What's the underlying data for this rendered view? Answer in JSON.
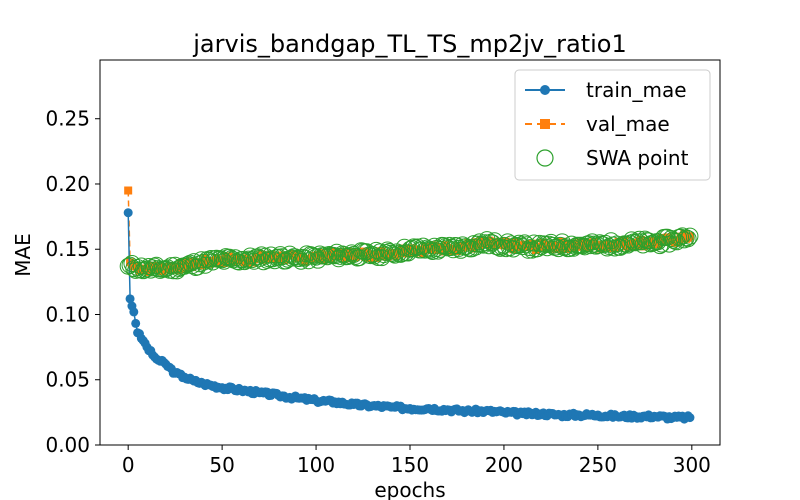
{
  "chart_data": {
    "type": "line",
    "title": "jarvis_bandgap_TL_TS_mp2jv_ratio1",
    "xlabel": "epochs",
    "ylabel": "MAE",
    "xlim": [
      -15,
      315
    ],
    "ylim": [
      0.0,
      0.295
    ],
    "xticks": [
      0,
      50,
      100,
      150,
      200,
      250,
      300
    ],
    "yticks": [
      0.0,
      0.05,
      0.1,
      0.15,
      0.2,
      0.25
    ],
    "legend_position": "top-right",
    "grid": false,
    "series": [
      {
        "name": "train_mae",
        "style": "solid-circle",
        "color": "#1f77b4",
        "anchors": [
          [
            0,
            0.178
          ],
          [
            1,
            0.112
          ],
          [
            3,
            0.102
          ],
          [
            5,
            0.086
          ],
          [
            8,
            0.08
          ],
          [
            10,
            0.075
          ],
          [
            13,
            0.069
          ],
          [
            16,
            0.065
          ],
          [
            20,
            0.062
          ],
          [
            25,
            0.055
          ],
          [
            30,
            0.052
          ],
          [
            35,
            0.049
          ],
          [
            40,
            0.047
          ],
          [
            50,
            0.044
          ],
          [
            60,
            0.042
          ],
          [
            70,
            0.04
          ],
          [
            80,
            0.038
          ],
          [
            90,
            0.036
          ],
          [
            100,
            0.034
          ],
          [
            110,
            0.033
          ],
          [
            120,
            0.031
          ],
          [
            130,
            0.03
          ],
          [
            140,
            0.029
          ],
          [
            150,
            0.028
          ],
          [
            160,
            0.028
          ],
          [
            170,
            0.027
          ],
          [
            180,
            0.026
          ],
          [
            190,
            0.026
          ],
          [
            200,
            0.025
          ],
          [
            210,
            0.024
          ],
          [
            220,
            0.024
          ],
          [
            230,
            0.023
          ],
          [
            240,
            0.023
          ],
          [
            250,
            0.023
          ],
          [
            260,
            0.022
          ],
          [
            270,
            0.022
          ],
          [
            280,
            0.022
          ],
          [
            290,
            0.021
          ],
          [
            299,
            0.021
          ]
        ]
      },
      {
        "name": "val_mae",
        "style": "dashed-square",
        "color": "#ff7f0e",
        "anchors": [
          [
            0,
            0.195
          ],
          [
            1,
            0.14
          ],
          [
            3,
            0.137
          ],
          [
            5,
            0.136
          ],
          [
            10,
            0.135
          ],
          [
            20,
            0.136
          ],
          [
            30,
            0.137
          ],
          [
            40,
            0.14
          ],
          [
            50,
            0.142
          ],
          [
            60,
            0.142
          ],
          [
            70,
            0.143
          ],
          [
            80,
            0.144
          ],
          [
            90,
            0.143
          ],
          [
            100,
            0.144
          ],
          [
            110,
            0.145
          ],
          [
            120,
            0.146
          ],
          [
            130,
            0.146
          ],
          [
            140,
            0.147
          ],
          [
            150,
            0.15
          ],
          [
            160,
            0.15
          ],
          [
            170,
            0.151
          ],
          [
            180,
            0.152
          ],
          [
            190,
            0.154
          ],
          [
            200,
            0.153
          ],
          [
            210,
            0.152
          ],
          [
            220,
            0.152
          ],
          [
            230,
            0.153
          ],
          [
            240,
            0.153
          ],
          [
            250,
            0.153
          ],
          [
            260,
            0.154
          ],
          [
            270,
            0.155
          ],
          [
            280,
            0.155
          ],
          [
            290,
            0.157
          ],
          [
            299,
            0.16
          ]
        ]
      },
      {
        "name": "SWA point",
        "style": "hollow-circle",
        "color": "#2ca02c",
        "anchors": [
          [
            0,
            0.137
          ],
          [
            5,
            0.136
          ],
          [
            10,
            0.135
          ],
          [
            20,
            0.135
          ],
          [
            30,
            0.137
          ],
          [
            40,
            0.14
          ],
          [
            50,
            0.142
          ],
          [
            60,
            0.142
          ],
          [
            70,
            0.143
          ],
          [
            80,
            0.144
          ],
          [
            90,
            0.143
          ],
          [
            100,
            0.144
          ],
          [
            110,
            0.145
          ],
          [
            120,
            0.146
          ],
          [
            130,
            0.146
          ],
          [
            140,
            0.147
          ],
          [
            150,
            0.15
          ],
          [
            160,
            0.15
          ],
          [
            170,
            0.151
          ],
          [
            180,
            0.152
          ],
          [
            190,
            0.155
          ],
          [
            200,
            0.153
          ],
          [
            210,
            0.152
          ],
          [
            220,
            0.152
          ],
          [
            230,
            0.153
          ],
          [
            240,
            0.153
          ],
          [
            250,
            0.153
          ],
          [
            260,
            0.154
          ],
          [
            270,
            0.155
          ],
          [
            280,
            0.155
          ],
          [
            290,
            0.157
          ],
          [
            299,
            0.16
          ]
        ]
      }
    ]
  }
}
